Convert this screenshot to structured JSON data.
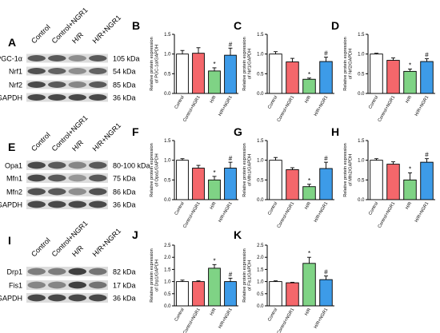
{
  "colors": {
    "control": "#ffffff",
    "control_ngr1": "#f4676b",
    "hr": "#7fd385",
    "hr_ngr1": "#3d9be8",
    "axis": "#000000",
    "band": "#2f2f2f"
  },
  "chart_data": [
    {
      "panel": "B",
      "type": "bar",
      "categories": [
        "Control",
        "Control+NGR1",
        "H/R",
        "H/R+NGR1"
      ],
      "values": [
        1.0,
        1.02,
        0.57,
        0.97
      ],
      "errors": [
        0.09,
        0.14,
        0.08,
        0.18
      ],
      "markers": [
        "",
        "",
        "*",
        "#"
      ],
      "ylabel": [
        "Relative protein expression",
        "of PGC-1α/GAPDH"
      ],
      "ylim": [
        0,
        1.5
      ],
      "yticks": [
        "0.0",
        "0.5",
        "1.0",
        "1.5"
      ]
    },
    {
      "panel": "C",
      "type": "bar",
      "categories": [
        "Control",
        "Control+NGR1",
        "H/R",
        "H/R+NGR1"
      ],
      "values": [
        1.0,
        0.8,
        0.36,
        0.81
      ],
      "errors": [
        0.06,
        0.09,
        0.03,
        0.11
      ],
      "markers": [
        "",
        "",
        "*",
        "#"
      ],
      "ylabel": [
        "Relative protein expression",
        "of Nrf1/GAPDH"
      ],
      "ylim": [
        0,
        1.5
      ],
      "yticks": [
        "0.0",
        "0.5",
        "1.0",
        "1.5"
      ]
    },
    {
      "panel": "D",
      "type": "bar",
      "categories": [
        "Control",
        "Control+NGR1",
        "H/R",
        "H/R+NGR1"
      ],
      "values": [
        1.0,
        0.84,
        0.56,
        0.81
      ],
      "errors": [
        0.02,
        0.06,
        0.06,
        0.07
      ],
      "markers": [
        "",
        "",
        "*",
        "#"
      ],
      "ylabel": [
        "Relative protein expression",
        "of Nrf2/GAPDH"
      ],
      "ylim": [
        0,
        1.5
      ],
      "yticks": [
        "0.0",
        "0.5",
        "1.0",
        "1.5"
      ]
    },
    {
      "panel": "F",
      "type": "bar",
      "categories": [
        "Control",
        "Control+NGR1",
        "H/R",
        "H/R+NGR1"
      ],
      "values": [
        1.0,
        0.8,
        0.5,
        0.8
      ],
      "errors": [
        0.04,
        0.07,
        0.09,
        0.15
      ],
      "markers": [
        "",
        "",
        "*",
        "#"
      ],
      "ylabel": [
        "Relative protein expression",
        "of Opa1/GAPDH"
      ],
      "ylim": [
        0,
        1.5
      ],
      "yticks": [
        "0.0",
        "0.5",
        "1.0",
        "1.5"
      ]
    },
    {
      "panel": "G",
      "type": "bar",
      "categories": [
        "Control",
        "Control+NGR1",
        "H/R",
        "H/R+NGR1"
      ],
      "values": [
        1.0,
        0.76,
        0.33,
        0.79
      ],
      "errors": [
        0.07,
        0.05,
        0.06,
        0.16
      ],
      "markers": [
        "",
        "",
        "*",
        "#"
      ],
      "ylabel": [
        "Relative protein expression",
        "of Mfn1/GAPDH"
      ],
      "ylim": [
        0,
        1.5
      ],
      "yticks": [
        "0.0",
        "0.5",
        "1.0",
        "1.5"
      ]
    },
    {
      "panel": "H",
      "type": "bar",
      "categories": [
        "Control",
        "Control+NGR1",
        "H/R",
        "H/R+NGR1"
      ],
      "values": [
        1.0,
        0.9,
        0.5,
        0.95
      ],
      "errors": [
        0.04,
        0.06,
        0.18,
        0.09
      ],
      "markers": [
        "",
        "",
        "*",
        "#"
      ],
      "ylabel": [
        "Relative protein expression",
        "of Mfn2/GAPDH"
      ],
      "ylim": [
        0,
        1.5
      ],
      "yticks": [
        "0.0",
        "0.5",
        "1.0",
        "1.5"
      ]
    },
    {
      "panel": "J",
      "type": "bar",
      "categories": [
        "Control",
        "Control+NGR1",
        "H/R",
        "H/R+NGR1"
      ],
      "values": [
        1.0,
        1.0,
        1.55,
        1.0
      ],
      "errors": [
        0.06,
        0.03,
        0.15,
        0.14
      ],
      "markers": [
        "",
        "",
        "*",
        "#"
      ],
      "ylabel": [
        "Relative protein expression",
        "of Drp1/GAPDH"
      ],
      "ylim": [
        0,
        2.5
      ],
      "yticks": [
        "0.0",
        "0.5",
        "1.0",
        "1.5",
        "2.0",
        "2.5"
      ]
    },
    {
      "panel": "K",
      "type": "bar",
      "categories": [
        "Control",
        "Control+NGR1",
        "H/R",
        "H/R+NGR1"
      ],
      "values": [
        1.0,
        0.95,
        1.75,
        1.08
      ],
      "errors": [
        0.03,
        0.02,
        0.25,
        0.15
      ],
      "markers": [
        "",
        "",
        "*",
        "#"
      ],
      "ylabel": [
        "Relative protein expression",
        "of Fis1/GAPDH"
      ],
      "ylim": [
        0,
        2.5
      ],
      "yticks": [
        "0.0",
        "0.5",
        "1.0",
        "1.5",
        "2.0",
        "2.5"
      ]
    }
  ],
  "blots": [
    {
      "panel": "A",
      "lanes": [
        "Control",
        "Control+NGR1",
        "H/R",
        "H/R+NGR1"
      ],
      "proteins": [
        "PGC-1α",
        "Nrf1",
        "Nrf2",
        "GAPDH"
      ],
      "sizes": [
        "105 kDa",
        "54 kDa",
        "85 kDa",
        "36 kDa"
      ],
      "intensity": [
        [
          0.75,
          0.75,
          0.45,
          0.75
        ],
        [
          0.8,
          0.7,
          0.45,
          0.7
        ],
        [
          0.85,
          0.75,
          0.5,
          0.75
        ],
        [
          0.85,
          0.85,
          0.85,
          0.85
        ]
      ]
    },
    {
      "panel": "E",
      "lanes": [
        "Control",
        "Control+NGR1",
        "H/R",
        "H/R+NGR1"
      ],
      "proteins": [
        "Opa1",
        "Mfn1",
        "Mfn2",
        "GAPDH"
      ],
      "sizes": [
        "80-100 kDa",
        "75 kDa",
        "86 kDa",
        "36 kDa"
      ],
      "intensity": [
        [
          0.85,
          0.75,
          0.5,
          0.75
        ],
        [
          0.85,
          0.75,
          0.4,
          0.75
        ],
        [
          0.8,
          0.75,
          0.45,
          0.8
        ],
        [
          0.85,
          0.85,
          0.85,
          0.85
        ]
      ]
    },
    {
      "panel": "I",
      "lanes": [
        "Control",
        "Control+NGR1",
        "H/R",
        "H/R+NGR1"
      ],
      "proteins": [
        "Drp1",
        "Fis1",
        "GAPDH"
      ],
      "sizes": [
        "82 kDa",
        "17 kDa",
        "36 kDa"
      ],
      "intensity": [
        [
          0.55,
          0.55,
          0.9,
          0.6
        ],
        [
          0.5,
          0.5,
          0.9,
          0.6
        ],
        [
          0.85,
          0.85,
          0.85,
          0.85
        ]
      ]
    }
  ]
}
